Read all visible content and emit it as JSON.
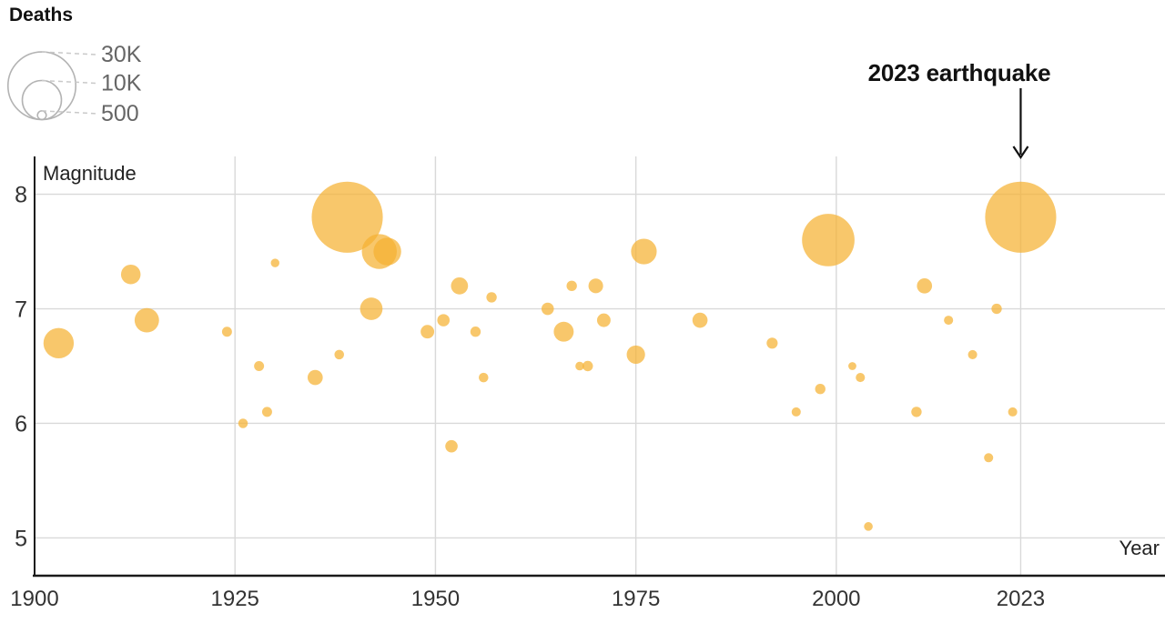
{
  "chart_data": {
    "type": "scatter",
    "subtype": "bubble",
    "xlabel": "Year",
    "ylabel": "Magnitude",
    "x_ticks": [
      1900,
      1925,
      1950,
      1975,
      2000,
      2023
    ],
    "y_ticks": [
      5,
      6,
      7,
      8
    ],
    "x_range": [
      1900,
      2041
    ],
    "y_range": [
      4.67,
      8.33
    ],
    "grid": true,
    "bubble_color": "#F5B232",
    "bubble_opacity": 0.72,
    "legend": {
      "title": "Deaths",
      "position": "top-left",
      "sizes": [
        {
          "value": 30000,
          "label": "30K"
        },
        {
          "value": 10000,
          "label": "10K"
        },
        {
          "value": 500,
          "label": "500"
        }
      ]
    },
    "annotation": {
      "text": "2023 earthquake",
      "year": 2023,
      "magnitude": 7.8
    },
    "points": [
      {
        "year": 1903,
        "magnitude": 6.7,
        "deaths": 6000
      },
      {
        "year": 1912,
        "magnitude": 7.3,
        "deaths": 2500
      },
      {
        "year": 1914,
        "magnitude": 6.9,
        "deaths": 3900
      },
      {
        "year": 1924,
        "magnitude": 6.8,
        "deaths": 650
      },
      {
        "year": 1926,
        "magnitude": 6.0,
        "deaths": 600
      },
      {
        "year": 1928,
        "magnitude": 6.5,
        "deaths": 650
      },
      {
        "year": 1929,
        "magnitude": 6.1,
        "deaths": 650
      },
      {
        "year": 1930,
        "magnitude": 7.4,
        "deaths": 480
      },
      {
        "year": 1935,
        "magnitude": 6.4,
        "deaths": 1500
      },
      {
        "year": 1938,
        "magnitude": 6.6,
        "deaths": 600
      },
      {
        "year": 1939,
        "magnitude": 7.8,
        "deaths": 33000
      },
      {
        "year": 1942,
        "magnitude": 7.0,
        "deaths": 3300
      },
      {
        "year": 1943,
        "magnitude": 7.5,
        "deaths": 8000
      },
      {
        "year": 1944,
        "magnitude": 7.5,
        "deaths": 5000
      },
      {
        "year": 1949,
        "magnitude": 6.8,
        "deaths": 1200
      },
      {
        "year": 1951,
        "magnitude": 6.9,
        "deaths": 1000
      },
      {
        "year": 1952,
        "magnitude": 5.8,
        "deaths": 1000
      },
      {
        "year": 1953,
        "magnitude": 7.2,
        "deaths": 1900
      },
      {
        "year": 1955,
        "magnitude": 6.8,
        "deaths": 700
      },
      {
        "year": 1956,
        "magnitude": 6.4,
        "deaths": 600
      },
      {
        "year": 1957,
        "magnitude": 7.1,
        "deaths": 700
      },
      {
        "year": 1964,
        "magnitude": 7.0,
        "deaths": 1000
      },
      {
        "year": 1966,
        "magnitude": 6.8,
        "deaths": 2600
      },
      {
        "year": 1967,
        "magnitude": 7.2,
        "deaths": 700
      },
      {
        "year": 1968,
        "magnitude": 6.5,
        "deaths": 500
      },
      {
        "year": 1969,
        "magnitude": 6.5,
        "deaths": 700
      },
      {
        "year": 1970,
        "magnitude": 7.2,
        "deaths": 1400
      },
      {
        "year": 1971,
        "magnitude": 6.9,
        "deaths": 1200
      },
      {
        "year": 1975,
        "magnitude": 6.6,
        "deaths": 2200
      },
      {
        "year": 1976,
        "magnitude": 7.5,
        "deaths": 4300
      },
      {
        "year": 1983,
        "magnitude": 6.9,
        "deaths": 1500
      },
      {
        "year": 1992,
        "magnitude": 6.7,
        "deaths": 800
      },
      {
        "year": 1995,
        "magnitude": 6.1,
        "deaths": 550
      },
      {
        "year": 1998,
        "magnitude": 6.3,
        "deaths": 700
      },
      {
        "year": 1999,
        "magnitude": 7.6,
        "deaths": 18000
      },
      {
        "year": 2002,
        "magnitude": 6.5,
        "deaths": 420
      },
      {
        "year": 2003,
        "magnitude": 6.4,
        "deaths": 550
      },
      {
        "year": 2004,
        "magnitude": 5.1,
        "deaths": 500
      },
      {
        "year": 2010,
        "magnitude": 6.1,
        "deaths": 700
      },
      {
        "year": 2011,
        "magnitude": 7.2,
        "deaths": 1500
      },
      {
        "year": 2014,
        "magnitude": 6.9,
        "deaths": 550
      },
      {
        "year": 2017,
        "magnitude": 6.6,
        "deaths": 550
      },
      {
        "year": 2019,
        "magnitude": 5.7,
        "deaths": 550
      },
      {
        "year": 2020,
        "magnitude": 7.0,
        "deaths": 700
      },
      {
        "year": 2022,
        "magnitude": 6.1,
        "deaths": 550
      },
      {
        "year": 2023,
        "magnitude": 7.8,
        "deaths": 33000
      }
    ]
  }
}
